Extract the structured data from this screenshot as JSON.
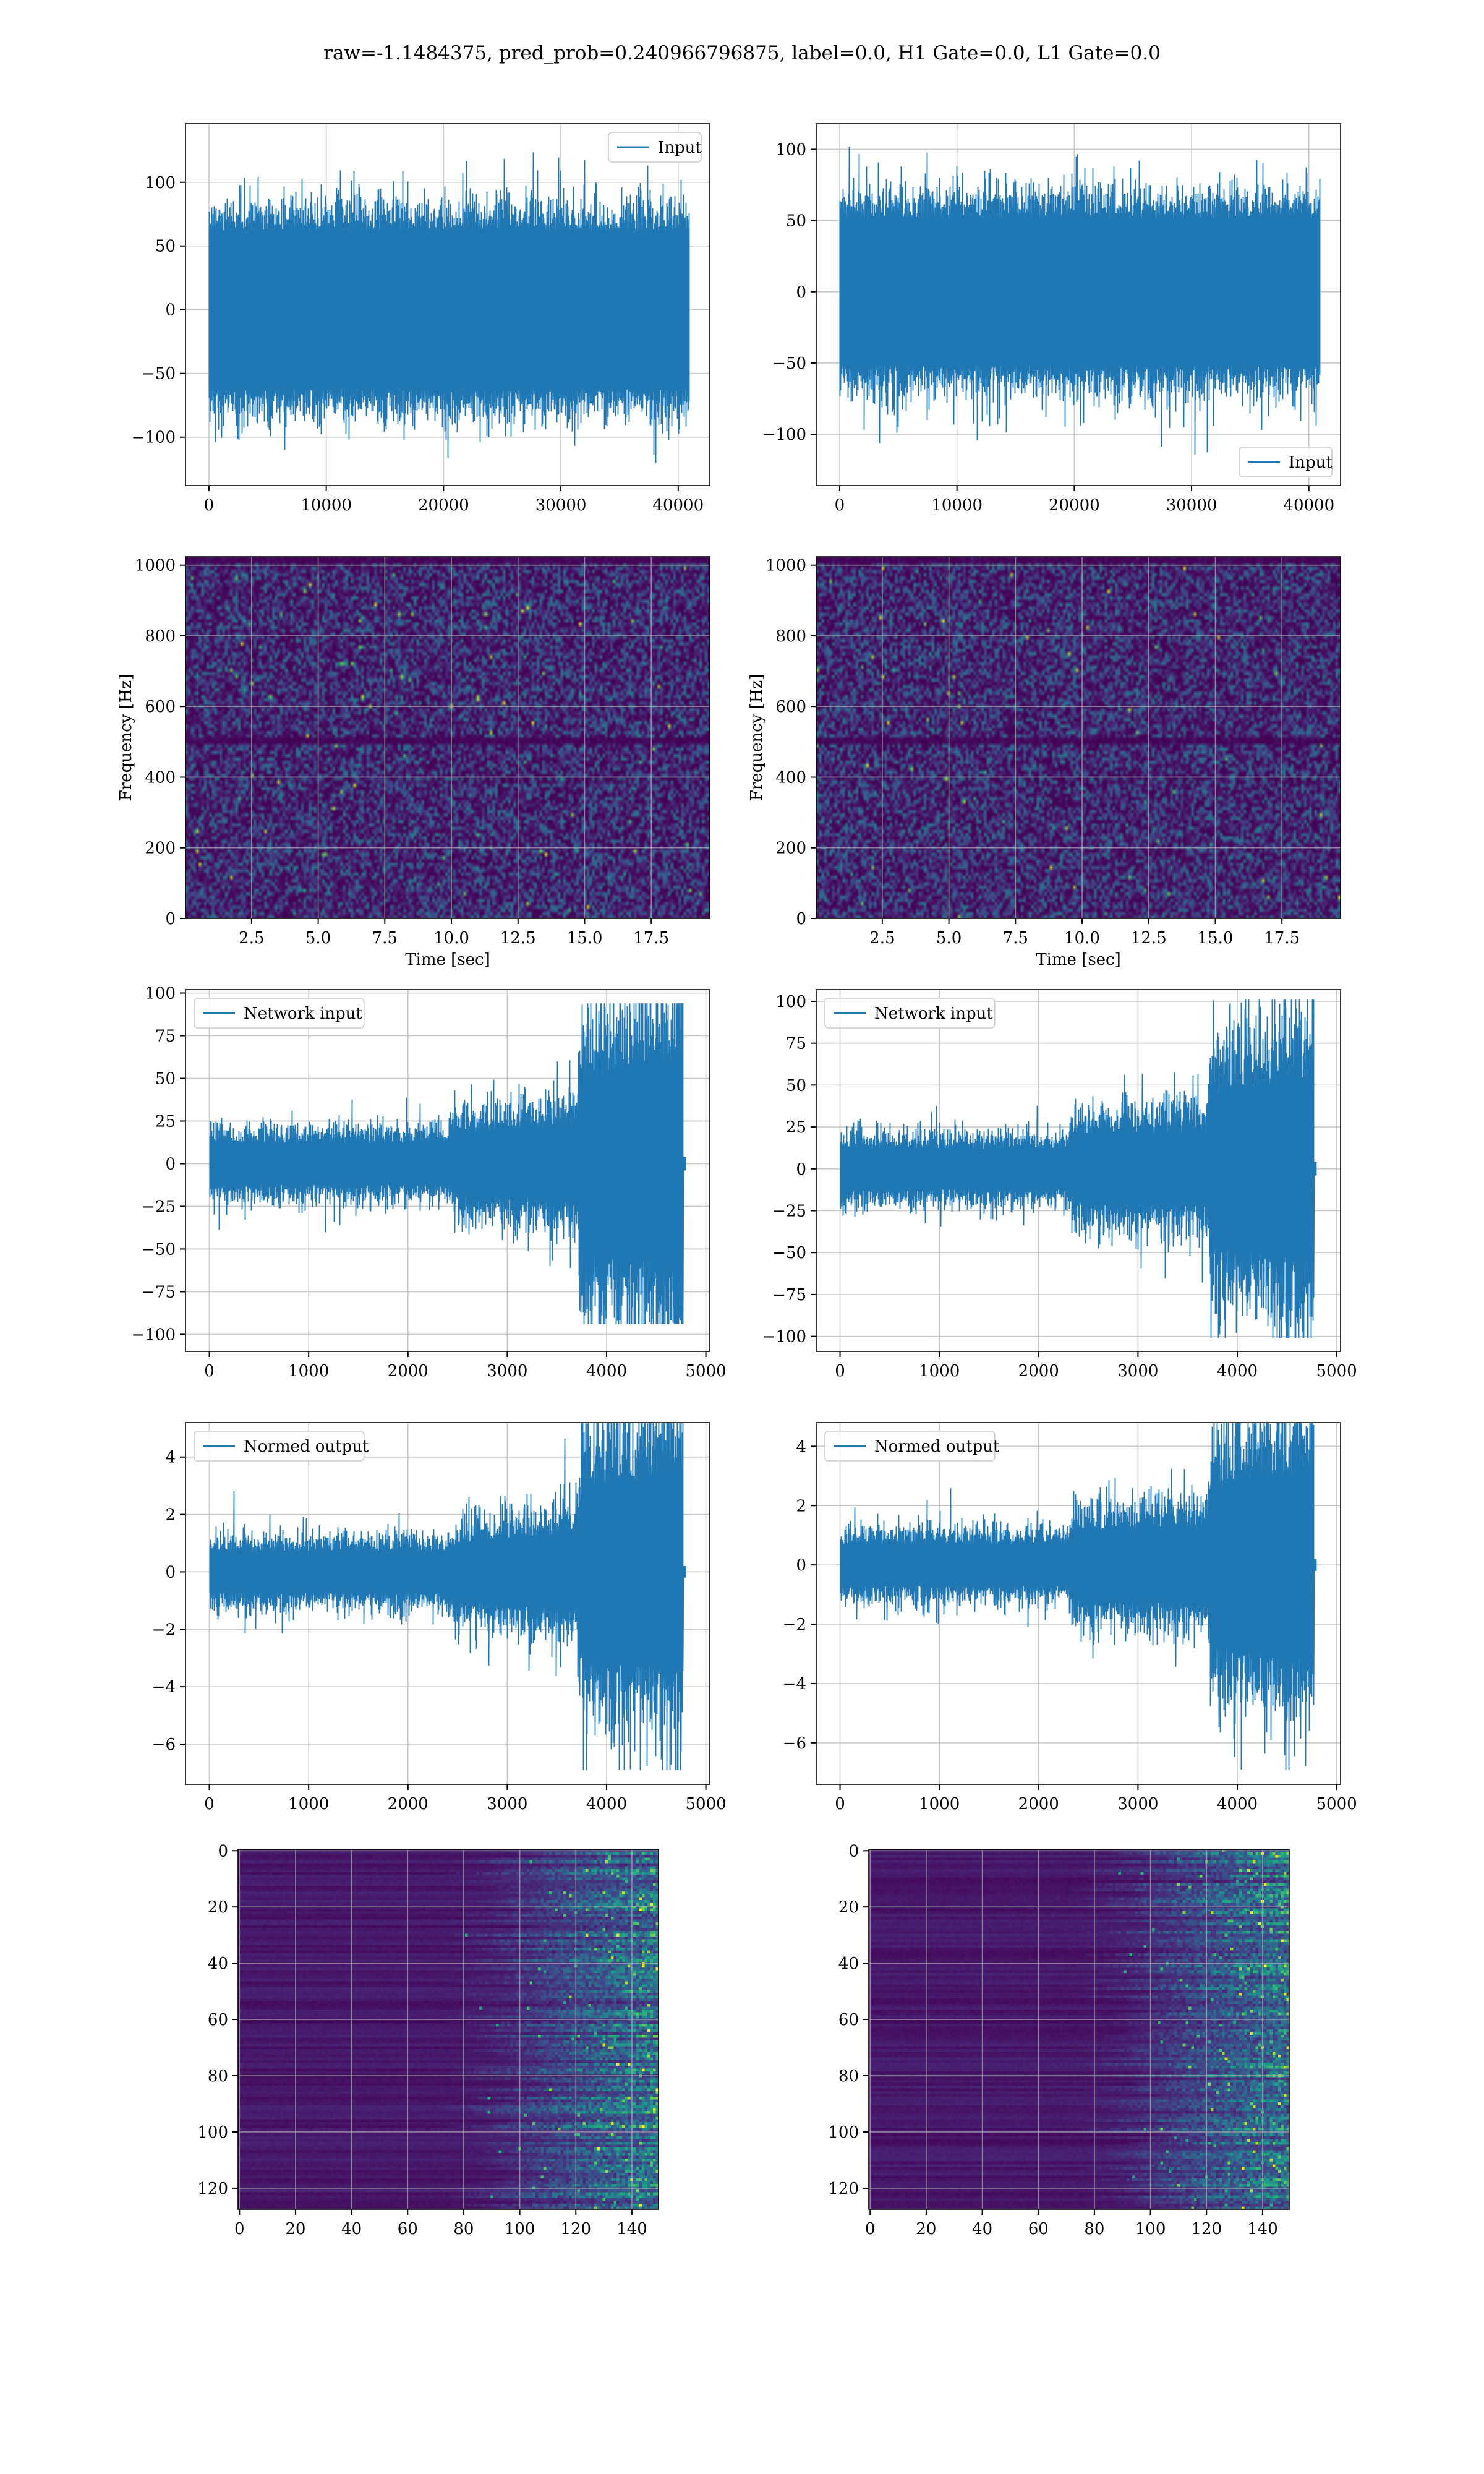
{
  "figure": {
    "title": "raw=-1.1484375, pred_prob=0.240966796875, label=0.0, H1 Gate=0.0, L1 Gate=0.0"
  },
  "colors": {
    "series": "#1f77b4",
    "grid": "#b0b0b0",
    "viridis_dark": "#440154"
  },
  "chart_data": [
    {
      "id": "input-left",
      "type": "line",
      "series": [
        {
          "name": "Input"
        }
      ],
      "legend": "upper right",
      "grid": true,
      "xlim": [
        -2000,
        42700
      ],
      "ylim": [
        -138,
        146
      ],
      "xticks": [
        0,
        10000,
        20000,
        30000,
        40000
      ],
      "xtick_labels": [
        "0",
        "10000",
        "20000",
        "30000",
        "40000"
      ],
      "yticks": [
        -100,
        -50,
        0,
        50,
        100
      ],
      "ytick_labels": [
        "−100",
        "−50",
        "0",
        "50",
        "100"
      ],
      "n_points": 40960,
      "core_amplitude": 62,
      "peak_amplitude": 133,
      "min_value": -126,
      "envelope": "stationary noise",
      "xlabel": "",
      "ylabel": ""
    },
    {
      "id": "input-right",
      "type": "line",
      "series": [
        {
          "name": "Input"
        }
      ],
      "legend": "lower right",
      "grid": true,
      "xlim": [
        -2000,
        42700
      ],
      "ylim": [
        -136,
        118
      ],
      "xticks": [
        0,
        10000,
        20000,
        30000,
        40000
      ],
      "xtick_labels": [
        "0",
        "10000",
        "20000",
        "30000",
        "40000"
      ],
      "yticks": [
        -100,
        -50,
        0,
        50,
        100
      ],
      "ytick_labels": [
        "−100",
        "−50",
        "0",
        "50",
        "100"
      ],
      "n_points": 40960,
      "core_amplitude": 52,
      "peak_amplitude": 115,
      "min_value": -125,
      "envelope": "stationary noise",
      "xlabel": "",
      "ylabel": ""
    },
    {
      "id": "spectrogram-left",
      "type": "heatmap",
      "grid": true,
      "colormap": "viridis",
      "xlim": [
        0.02,
        19.7
      ],
      "ylim": [
        0,
        1024
      ],
      "xticks": [
        2.5,
        5,
        7.5,
        10,
        12.5,
        15,
        17.5
      ],
      "xtick_labels": [
        "2.5",
        "5.0",
        "7.5",
        "10.0",
        "12.5",
        "15.0",
        "17.5"
      ],
      "yticks": [
        0,
        200,
        400,
        600,
        800,
        1000
      ],
      "ytick_labels": [
        "0",
        "200",
        "400",
        "600",
        "800",
        "1000"
      ],
      "xlabel": "Time [sec]",
      "ylabel": "Frequency [Hz]",
      "dark_band_hz": [
        500,
        1010
      ]
    },
    {
      "id": "spectrogram-right",
      "type": "heatmap",
      "grid": true,
      "colormap": "viridis",
      "xlim": [
        0.02,
        19.7
      ],
      "ylim": [
        0,
        1024
      ],
      "xticks": [
        2.5,
        5,
        7.5,
        10,
        12.5,
        15,
        17.5
      ],
      "xtick_labels": [
        "2.5",
        "5.0",
        "7.5",
        "10.0",
        "12.5",
        "15.0",
        "17.5"
      ],
      "yticks": [
        0,
        200,
        400,
        600,
        800,
        1000
      ],
      "ytick_labels": [
        "0",
        "200",
        "400",
        "600",
        "800",
        "1000"
      ],
      "xlabel": "Time [sec]",
      "ylabel": "Frequency [Hz]",
      "dark_band_hz": [
        500,
        1010
      ]
    },
    {
      "id": "network-left",
      "type": "line",
      "series": [
        {
          "name": "Network input"
        }
      ],
      "legend": "upper left",
      "grid": true,
      "xlim": [
        -240,
        5040
      ],
      "ylim": [
        -110,
        102
      ],
      "xticks": [
        0,
        1000,
        2000,
        3000,
        4000,
        5000
      ],
      "xtick_labels": [
        "0",
        "1000",
        "2000",
        "3000",
        "4000",
        "5000"
      ],
      "yticks": [
        -100,
        -75,
        -50,
        -25,
        0,
        25,
        50,
        75,
        100
      ],
      "ytick_labels": [
        "−100",
        "−75",
        "−50",
        "−25",
        "0",
        "25",
        "50",
        "75",
        "100"
      ],
      "n_points": 4800,
      "signal_end": 4770,
      "tail_amplitude": 4,
      "envelope_profile": [
        [
          0,
          12
        ],
        [
          2400,
          12
        ],
        [
          2500,
          18
        ],
        [
          3700,
          22
        ],
        [
          3750,
          50
        ],
        [
          4770,
          60
        ]
      ],
      "peak_amplitude": 94,
      "xlabel": "",
      "ylabel": ""
    },
    {
      "id": "network-right",
      "type": "line",
      "series": [
        {
          "name": "Network input"
        }
      ],
      "legend": "upper left",
      "grid": true,
      "xlim": [
        -240,
        5040
      ],
      "ylim": [
        -109,
        107
      ],
      "xticks": [
        0,
        1000,
        2000,
        3000,
        4000,
        5000
      ],
      "xtick_labels": [
        "0",
        "1000",
        "2000",
        "3000",
        "4000",
        "5000"
      ],
      "yticks": [
        -100,
        -75,
        -50,
        -25,
        0,
        25,
        50,
        75,
        100
      ],
      "ytick_labels": [
        "−100",
        "−75",
        "−50",
        "−25",
        "0",
        "25",
        "50",
        "75",
        "100"
      ],
      "n_points": 4800,
      "signal_end": 4770,
      "tail_amplitude": 4,
      "envelope_profile": [
        [
          0,
          12
        ],
        [
          2300,
          12
        ],
        [
          2350,
          20
        ],
        [
          3700,
          22
        ],
        [
          3750,
          45
        ],
        [
          4770,
          55
        ]
      ],
      "peak_amplitude": 101,
      "xlabel": "",
      "ylabel": ""
    },
    {
      "id": "normed-left",
      "type": "line",
      "series": [
        {
          "name": "Normed output"
        }
      ],
      "legend": "upper left",
      "grid": true,
      "xlim": [
        -240,
        5040
      ],
      "ylim": [
        -7.4,
        5.2
      ],
      "xticks": [
        0,
        1000,
        2000,
        3000,
        4000,
        5000
      ],
      "xtick_labels": [
        "0",
        "1000",
        "2000",
        "3000",
        "4000",
        "5000"
      ],
      "yticks": [
        -6,
        -4,
        -2,
        0,
        2,
        4
      ],
      "ytick_labels": [
        "−6",
        "−4",
        "−2",
        "0",
        "2",
        "4"
      ],
      "n_points": 4800,
      "signal_end": 4770,
      "tail_amplitude": 0.2,
      "envelope_profile": [
        [
          0,
          0.7
        ],
        [
          2400,
          0.7
        ],
        [
          2500,
          1.0
        ],
        [
          3700,
          1.3
        ],
        [
          3750,
          2.9
        ],
        [
          4770,
          3.4
        ]
      ],
      "peak_amplitude": 6.9,
      "xlabel": "",
      "ylabel": ""
    },
    {
      "id": "normed-right",
      "type": "line",
      "series": [
        {
          "name": "Normed output"
        }
      ],
      "legend": "upper left",
      "grid": true,
      "xlim": [
        -240,
        5040
      ],
      "ylim": [
        -7.4,
        4.8
      ],
      "xticks": [
        0,
        1000,
        2000,
        3000,
        4000,
        5000
      ],
      "xtick_labels": [
        "0",
        "1000",
        "2000",
        "3000",
        "4000",
        "5000"
      ],
      "yticks": [
        -6,
        -4,
        -2,
        0,
        2,
        4
      ],
      "ytick_labels": [
        "−6",
        "−4",
        "−2",
        "0",
        "2",
        "4"
      ],
      "n_points": 4800,
      "signal_end": 4770,
      "tail_amplitude": 0.2,
      "envelope_profile": [
        [
          0,
          0.7
        ],
        [
          2300,
          0.7
        ],
        [
          2350,
          1.1
        ],
        [
          3700,
          1.3
        ],
        [
          3750,
          2.6
        ],
        [
          4770,
          3.2
        ]
      ],
      "peak_amplitude": 6.9,
      "xlabel": "",
      "ylabel": ""
    },
    {
      "id": "features-left",
      "type": "heatmap",
      "grid": true,
      "colormap": "viridis",
      "y_inverted": true,
      "rows": 128,
      "cols": 150,
      "xlim": [
        -0.5,
        149.5
      ],
      "ylim": [
        127.5,
        -0.5
      ],
      "xticks": [
        0,
        20,
        40,
        60,
        80,
        100,
        120,
        140
      ],
      "xtick_labels": [
        "0",
        "20",
        "40",
        "60",
        "80",
        "100",
        "120",
        "140"
      ],
      "yticks": [
        0,
        20,
        40,
        60,
        80,
        100,
        120
      ],
      "ytick_labels": [
        "0",
        "20",
        "40",
        "60",
        "80",
        "100",
        "120"
      ],
      "activity_starts_col": 85,
      "xlabel": "",
      "ylabel": ""
    },
    {
      "id": "features-right",
      "type": "heatmap",
      "grid": true,
      "colormap": "viridis",
      "y_inverted": true,
      "rows": 128,
      "cols": 150,
      "xlim": [
        -0.5,
        149.5
      ],
      "ylim": [
        127.5,
        -0.5
      ],
      "xticks": [
        0,
        20,
        40,
        60,
        80,
        100,
        120,
        140
      ],
      "xtick_labels": [
        "0",
        "20",
        "40",
        "60",
        "80",
        "100",
        "120",
        "140"
      ],
      "yticks": [
        0,
        20,
        40,
        60,
        80,
        100,
        120
      ],
      "ytick_labels": [
        "0",
        "20",
        "40",
        "60",
        "80",
        "100",
        "120"
      ],
      "activity_starts_col": 85,
      "xlabel": "",
      "ylabel": ""
    }
  ]
}
